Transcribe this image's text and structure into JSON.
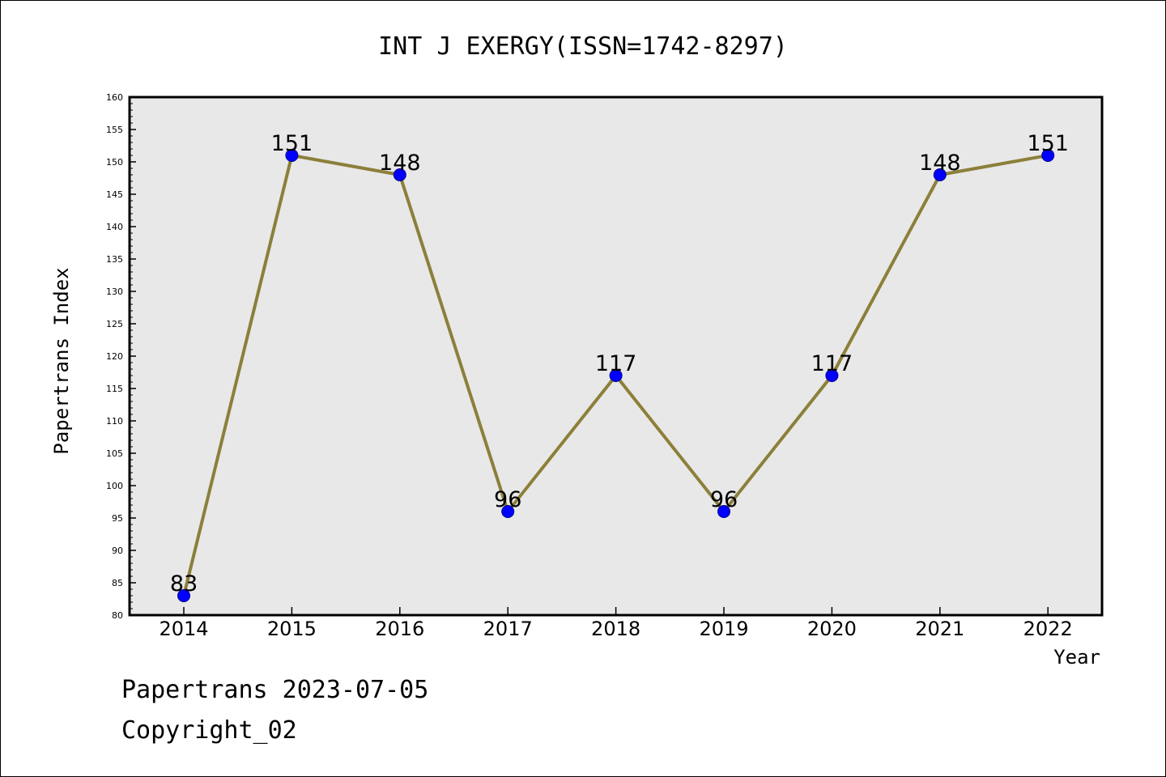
{
  "chart_data": {
    "type": "line",
    "title": "INT J EXERGY(ISSN=1742-8297)",
    "xlabel": "Year",
    "ylabel": "Papertrans Index",
    "categories": [
      "2014",
      "2015",
      "2016",
      "2017",
      "2018",
      "2019",
      "2020",
      "2021",
      "2022"
    ],
    "series": [
      {
        "values": [
          83,
          151,
          148,
          96,
          117,
          96,
          117,
          148,
          151
        ],
        "data_labels": [
          "83",
          "151",
          "148",
          "96",
          "117",
          "96",
          "117",
          "148",
          "151"
        ]
      }
    ],
    "ylim": [
      80,
      160
    ],
    "yticks": [
      "80",
      "85",
      "90",
      "95",
      "100",
      "105",
      "110",
      "115",
      "120",
      "125",
      "130",
      "135",
      "140",
      "145",
      "150",
      "155",
      "160"
    ],
    "grid": false,
    "colors": {
      "line": "#8c7f3a",
      "marker": "#0000ff",
      "plot_bg": "#e8e8e8"
    }
  },
  "footer": {
    "line1": "Papertrans 2023-07-05",
    "line2": "Copyright_02"
  }
}
